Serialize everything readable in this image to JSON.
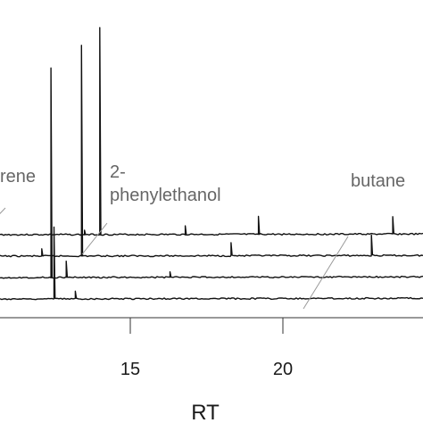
{
  "chart_data": {
    "type": "line",
    "xlabel": "RT",
    "xticks": [
      15,
      20
    ],
    "xlim": [
      10.7,
      24.6
    ],
    "traces_count": 4,
    "annotations": [
      {
        "text_lines": [
          "rene"
        ],
        "rt": 11.2
      },
      {
        "text_lines": [
          "2-",
          "phenylethanol"
        ],
        "rt": 13.0
      },
      {
        "text_lines": [
          "butane"
        ],
        "rt": 20.6
      }
    ],
    "series": [
      {
        "baseline_offset": 0,
        "peaks": [
          {
            "rt": 14.0,
            "height": 232
          },
          {
            "rt": 19.2,
            "height": 20
          },
          {
            "rt": 23.6,
            "height": 19
          },
          {
            "rt": 13.5,
            "height": 5
          },
          {
            "rt": 16.8,
            "height": 10
          }
        ]
      },
      {
        "baseline_offset": 24,
        "peaks": [
          {
            "rt": 13.4,
            "height": 236
          },
          {
            "rt": 22.9,
            "height": 22
          },
          {
            "rt": 12.1,
            "height": 8
          },
          {
            "rt": 18.3,
            "height": 14
          }
        ]
      },
      {
        "baseline_offset": 48,
        "peaks": [
          {
            "rt": 12.4,
            "height": 235
          },
          {
            "rt": 12.9,
            "height": 18
          },
          {
            "rt": 16.3,
            "height": 6
          }
        ]
      },
      {
        "baseline_offset": 72,
        "peaks": [
          {
            "rt": 12.5,
            "height": 80
          },
          {
            "rt": 13.2,
            "height": 8
          }
        ]
      }
    ]
  }
}
